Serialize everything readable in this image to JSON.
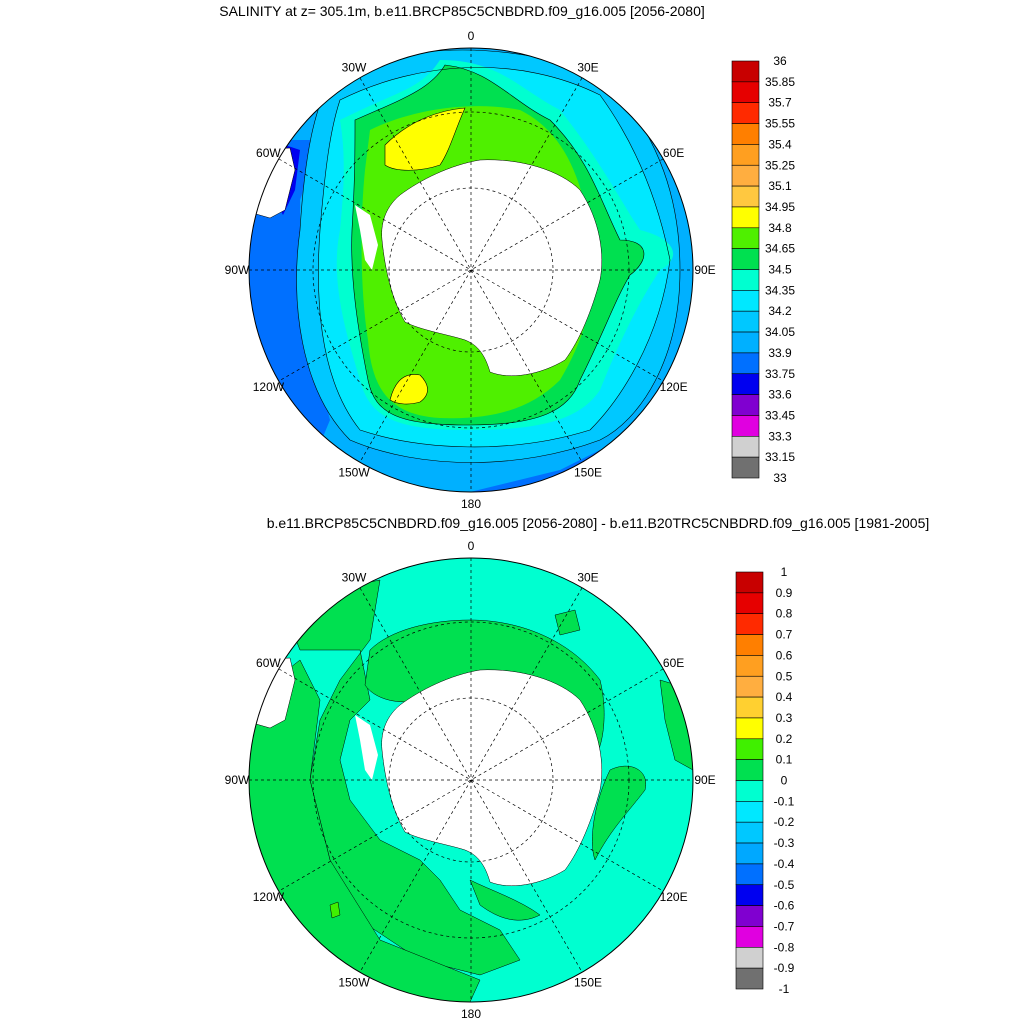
{
  "panels": [
    {
      "id": "salinity",
      "title": "SALINITY at z= 305.1m, b.e11.BRCP85C5CNBDRD.f09_g16.005 [2056-2080]",
      "lon_labels": [
        "0",
        "30E",
        "60E",
        "90E",
        "120E",
        "150E",
        "180",
        "150W",
        "120W",
        "90W",
        "60W",
        "30W"
      ],
      "colorbar": {
        "labels": [
          "36",
          "35.85",
          "35.7",
          "35.55",
          "35.4",
          "35.25",
          "35.1",
          "34.95",
          "34.8",
          "34.65",
          "34.5",
          "34.35",
          "34.2",
          "34.05",
          "33.9",
          "33.75",
          "33.6",
          "33.45",
          "33.3",
          "33.15",
          "33"
        ],
        "colors": [
          "#c80000",
          "#e60000",
          "#ff2a00",
          "#ff7f00",
          "#ff9f20",
          "#ffae40",
          "#ffc840",
          "#ffff00",
          "#4ff000",
          "#00e050",
          "#00ffd0",
          "#00e8ff",
          "#00c8ff",
          "#00b0ff",
          "#0070ff",
          "#0000f0",
          "#8000d0",
          "#e000e0",
          "#d0d0d0",
          "#707070"
        ]
      }
    },
    {
      "id": "difference",
      "title": "b.e11.BRCP85C5CNBDRD.f09_g16.005 [2056-2080] - b.e11.B20TRC5CNBDRD.f09_g16.005 [1981-2005]",
      "lon_labels": [
        "0",
        "30E",
        "60E",
        "90E",
        "120E",
        "150E",
        "180",
        "150W",
        "120W",
        "90W",
        "60W",
        "30W"
      ],
      "colorbar": {
        "labels": [
          "1",
          "0.9",
          "0.8",
          "0.7",
          "0.6",
          "0.5",
          "0.4",
          "0.3",
          "0.2",
          "0.1",
          "0",
          "-0.1",
          "-0.2",
          "-0.3",
          "-0.4",
          "-0.5",
          "-0.6",
          "-0.7",
          "-0.8",
          "-0.9",
          "-1"
        ],
        "colors": [
          "#c80000",
          "#e60000",
          "#ff2a00",
          "#ff7f00",
          "#ff9f20",
          "#ffae40",
          "#ffd030",
          "#ffff00",
          "#40f000",
          "#00e050",
          "#00ffd0",
          "#00e8ff",
          "#00c8ff",
          "#00a8ff",
          "#0070ff",
          "#0000f0",
          "#8000d0",
          "#e000e0",
          "#d0d0d0",
          "#707070"
        ]
      }
    }
  ]
}
